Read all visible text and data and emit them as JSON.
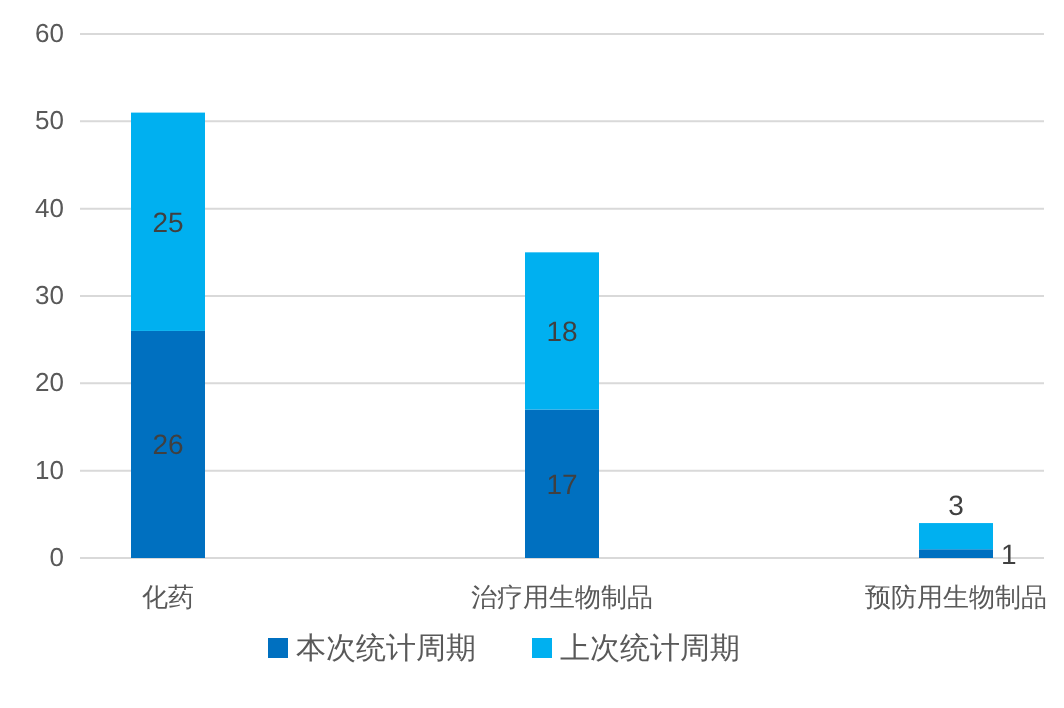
{
  "chart_data": {
    "type": "bar",
    "stacked": true,
    "categories": [
      "化药",
      "治疗用生物制品",
      "预防用生物制品"
    ],
    "series": [
      {
        "name": "本次统计周期",
        "color": "#0070c0",
        "values": [
          26,
          17,
          1
        ]
      },
      {
        "name": "上次统计周期",
        "color": "#00b0f0",
        "values": [
          25,
          18,
          3
        ]
      }
    ],
    "ylim": [
      0,
      60
    ],
    "yticks": [
      0,
      10,
      20,
      30,
      40,
      50,
      60
    ],
    "grid": "y",
    "legend": "bottom",
    "data_labels": true
  }
}
